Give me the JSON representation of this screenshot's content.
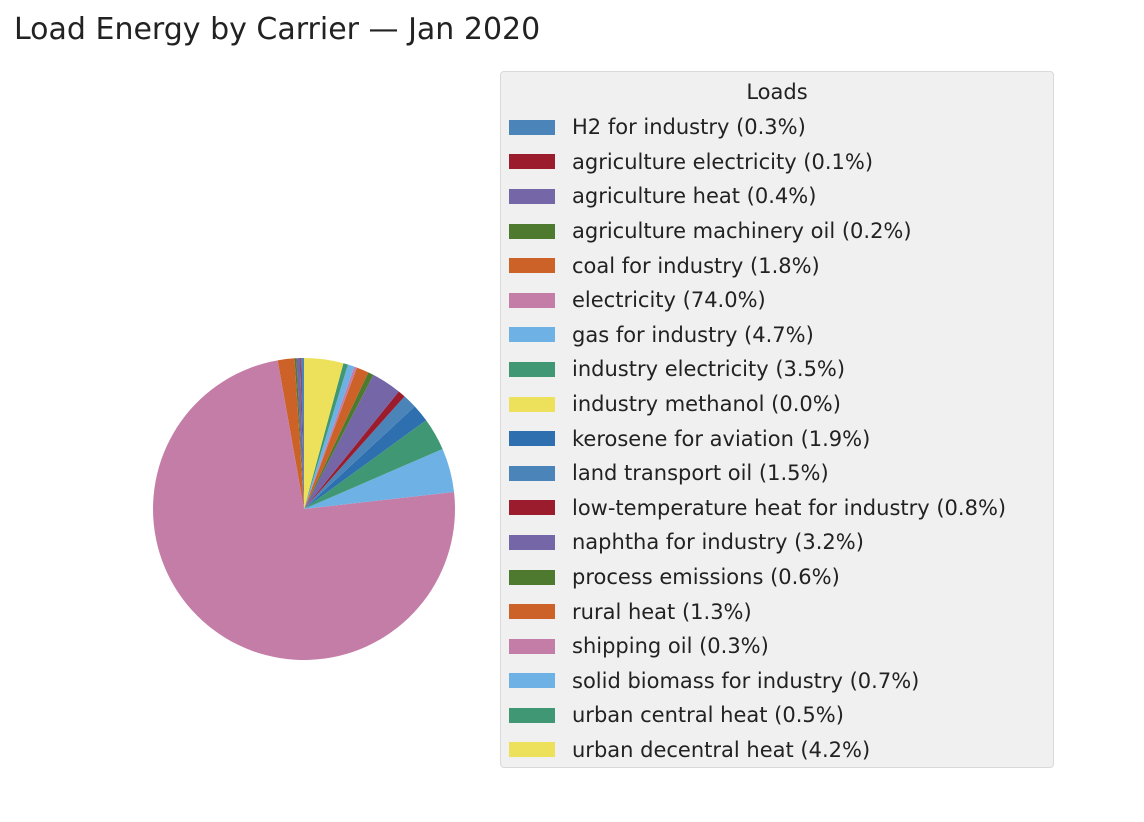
{
  "chart_data": {
    "type": "pie",
    "title": "Load Energy by Carrier — Jan 2020",
    "legend_title": "Loads",
    "legend_position": "right",
    "slices": [
      {
        "label": "H2 for industry (0.3%)",
        "name": "H2 for industry",
        "value": 0.3,
        "color": "#4b84b8"
      },
      {
        "label": "agriculture electricity (0.1%)",
        "name": "agriculture electricity",
        "value": 0.1,
        "color": "#9b1c2c"
      },
      {
        "label": "agriculture heat (0.4%)",
        "name": "agriculture heat",
        "value": 0.4,
        "color": "#7566a8"
      },
      {
        "label": "agriculture machinery oil (0.2%)",
        "name": "agriculture machinery oil",
        "value": 0.2,
        "color": "#4d7a2e"
      },
      {
        "label": "coal for industry (1.8%)",
        "name": "coal for industry",
        "value": 1.8,
        "color": "#cd6228"
      },
      {
        "label": "electricity (74.0%)",
        "name": "electricity",
        "value": 74.0,
        "color": "#c47da7"
      },
      {
        "label": "gas for industry (4.7%)",
        "name": "gas for industry",
        "value": 4.7,
        "color": "#6eb1e4"
      },
      {
        "label": "industry electricity (3.5%)",
        "name": "industry electricity",
        "value": 3.5,
        "color": "#3f9873"
      },
      {
        "label": "industry methanol (0.0%)",
        "name": "industry methanol",
        "value": 0.0,
        "color": "#ede15b"
      },
      {
        "label": "kerosene for aviation (1.9%)",
        "name": "kerosene for aviation",
        "value": 1.9,
        "color": "#2e6fb0"
      },
      {
        "label": "land transport oil (1.5%)",
        "name": "land transport oil",
        "value": 1.5,
        "color": "#4b84b8"
      },
      {
        "label": "low-temperature heat for industry (0.8%)",
        "name": "low-temperature heat for industry",
        "value": 0.8,
        "color": "#9b1c2c"
      },
      {
        "label": "naphtha for industry (3.2%)",
        "name": "naphtha for industry",
        "value": 3.2,
        "color": "#7566a8"
      },
      {
        "label": "process emissions (0.6%)",
        "name": "process emissions",
        "value": 0.6,
        "color": "#4d7a2e"
      },
      {
        "label": "rural heat (1.3%)",
        "name": "rural heat",
        "value": 1.3,
        "color": "#cd6228"
      },
      {
        "label": "shipping oil (0.3%)",
        "name": "shipping oil",
        "value": 0.3,
        "color": "#c47da7"
      },
      {
        "label": "solid biomass for industry (0.7%)",
        "name": "solid biomass for industry",
        "value": 0.7,
        "color": "#6eb1e4"
      },
      {
        "label": "urban central heat (0.5%)",
        "name": "urban central heat",
        "value": 0.5,
        "color": "#3f9873"
      },
      {
        "label": "urban decentral heat (4.2%)",
        "name": "urban decentral heat",
        "value": 4.2,
        "color": "#ede15b"
      }
    ]
  }
}
